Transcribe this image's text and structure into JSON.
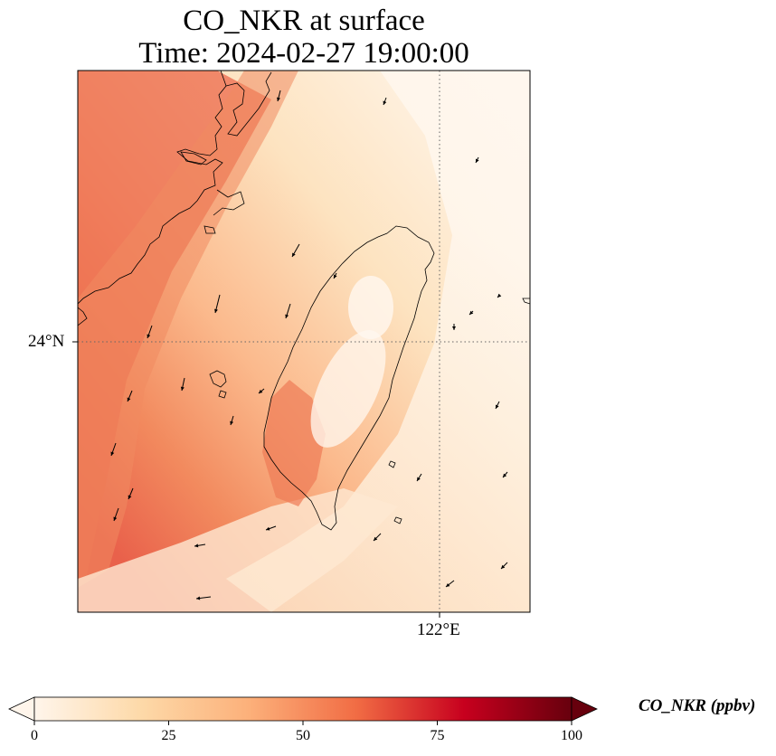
{
  "title": {
    "line1": "CO_NKR at surface",
    "line2": "Time: 2024-02-27 19:00:00"
  },
  "axes": {
    "lat_tick_label": "24°N",
    "lon_tick_label": "122°E"
  },
  "colorbar": {
    "label": "CO_NKR (ppbv)",
    "ticks": [
      "0",
      "25",
      "50",
      "75",
      "100"
    ],
    "range": [
      0,
      100
    ],
    "colormap_stops": [
      "#fff5eb",
      "#fdd9a8",
      "#fcb07a",
      "#f16c44",
      "#c7001e",
      "#67000d"
    ]
  },
  "colors": {
    "coastline": "#000000",
    "gridline": "#666666",
    "wind_arrow": "#000000",
    "frame": "#000000"
  },
  "map_features": {
    "gridlines": "dotted",
    "wind_vectors": "shown",
    "coastlines": "shown"
  }
}
